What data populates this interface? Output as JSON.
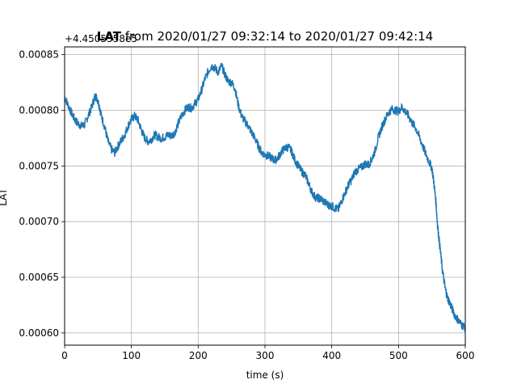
{
  "chart_data": {
    "type": "line",
    "title": {
      "bold": "LAT",
      "rest": " from 2020/01/27 09:32:14 to 2020/01/27 09:42:14"
    },
    "xlabel": "time (s)",
    "ylabel": "LAT",
    "offset_text": "+4.4505558e5",
    "xlim": [
      0,
      600
    ],
    "ylim": [
      0.000589,
      0.000857
    ],
    "xticks": [
      0,
      100,
      200,
      300,
      400,
      500,
      600
    ],
    "yticks": [
      0.0006,
      0.00065,
      0.0007,
      0.00075,
      0.0008,
      0.00085
    ],
    "ytick_labels": [
      "0.00060",
      "0.00065",
      "0.00070",
      "0.00075",
      "0.00080",
      "0.00085"
    ],
    "grid": true,
    "line_color": "#1f77b4",
    "series": [
      {
        "x": [
          0,
          5,
          10,
          15,
          20,
          25,
          30,
          35,
          40,
          45,
          48,
          52,
          55,
          60,
          65,
          70,
          75,
          80,
          85,
          90,
          95,
          100,
          105,
          110,
          115,
          120,
          125,
          130,
          135,
          140,
          145,
          150,
          155,
          160,
          165,
          170,
          175,
          180,
          185,
          190,
          195,
          200,
          205,
          210,
          215,
          220,
          225,
          230,
          235,
          240,
          245,
          250,
          255,
          260,
          265,
          270,
          275,
          280,
          285,
          290,
          295,
          300,
          305,
          310,
          315,
          320,
          325,
          330,
          335,
          340,
          345,
          350,
          355,
          360,
          365,
          370,
          375,
          380,
          385,
          390,
          395,
          400,
          405,
          410,
          415,
          420,
          425,
          430,
          435,
          440,
          445,
          450,
          455,
          460,
          465,
          470,
          475,
          480,
          485,
          490,
          495,
          500,
          505,
          510,
          515,
          520,
          525,
          530,
          535,
          540,
          545,
          550,
          553,
          556,
          558,
          560,
          563,
          566,
          570,
          573,
          576,
          580,
          585,
          590,
          595,
          600
        ],
        "y": [
          0.000812,
          0.000805,
          0.000798,
          0.000792,
          0.000788,
          0.000786,
          0.000787,
          0.000795,
          0.000802,
          0.000812,
          0.000812,
          0.000804,
          0.000795,
          0.000785,
          0.000772,
          0.000765,
          0.000762,
          0.000768,
          0.000773,
          0.000778,
          0.000786,
          0.000792,
          0.000795,
          0.000791,
          0.000782,
          0.000775,
          0.000772,
          0.000774,
          0.000778,
          0.000776,
          0.000775,
          0.000776,
          0.000778,
          0.000777,
          0.00078,
          0.000788,
          0.000795,
          0.0008,
          0.000803,
          0.000802,
          0.000806,
          0.00081,
          0.000818,
          0.000828,
          0.000835,
          0.00084,
          0.000838,
          0.000834,
          0.00084,
          0.000832,
          0.000826,
          0.000825,
          0.00082,
          0.000805,
          0.000795,
          0.00079,
          0.000786,
          0.00078,
          0.000775,
          0.000768,
          0.000762,
          0.00076,
          0.000759,
          0.000757,
          0.000755,
          0.000758,
          0.000763,
          0.000766,
          0.000767,
          0.000763,
          0.000755,
          0.00075,
          0.000745,
          0.000742,
          0.000735,
          0.000727,
          0.000722,
          0.000721,
          0.00072,
          0.000717,
          0.000715,
          0.000714,
          0.000712,
          0.000711,
          0.000719,
          0.000726,
          0.000733,
          0.000738,
          0.000745,
          0.000747,
          0.000749,
          0.000752,
          0.000751,
          0.000756,
          0.000764,
          0.000776,
          0.000785,
          0.000792,
          0.000798,
          0.000801,
          0.0008,
          0.000799,
          0.000803,
          0.000799,
          0.000795,
          0.000789,
          0.000785,
          0.000778,
          0.00077,
          0.000762,
          0.000755,
          0.000748,
          0.000735,
          0.000718,
          0.0007,
          0.000688,
          0.000672,
          0.000655,
          0.00064,
          0.000632,
          0.000628,
          0.000622,
          0.000615,
          0.000611,
          0.000607,
          0.000605
        ]
      }
    ]
  }
}
